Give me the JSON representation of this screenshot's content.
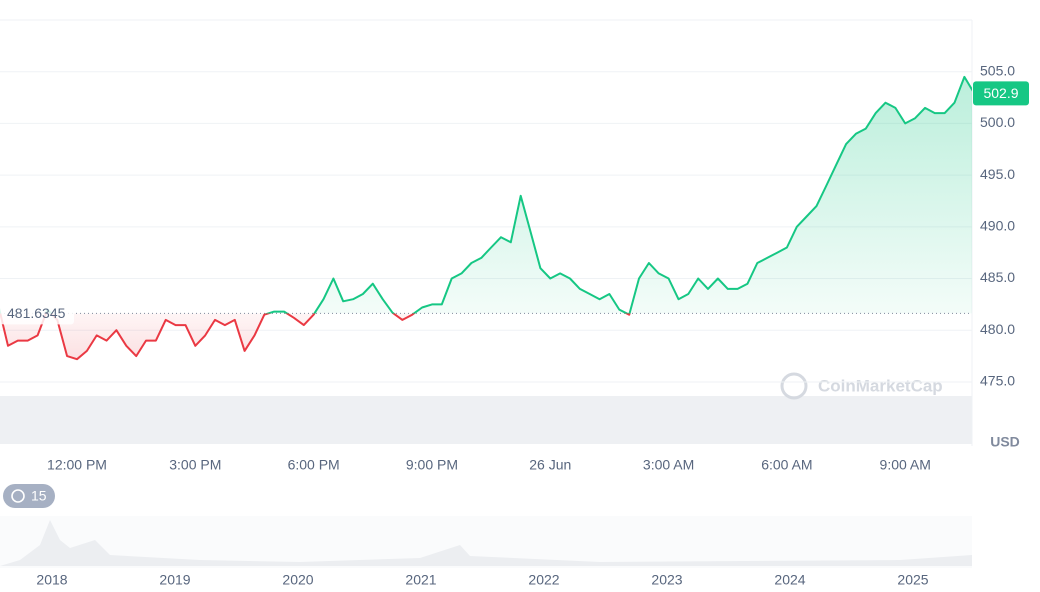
{
  "chart_data": {
    "type": "line",
    "categories": [
      null,
      null,
      null,
      null,
      null,
      null,
      null,
      null,
      "12:00 PM",
      null,
      null,
      null,
      null,
      null,
      null,
      null,
      null,
      null,
      null,
      null,
      "3:00 PM",
      null,
      null,
      null,
      null,
      null,
      null,
      null,
      null,
      null,
      null,
      null,
      "6:00 PM",
      null,
      null,
      null,
      null,
      null,
      null,
      null,
      null,
      null,
      null,
      null,
      "9:00 PM",
      null,
      null,
      null,
      null,
      null,
      null,
      null,
      null,
      null,
      null,
      null,
      "26 Jun",
      null,
      null,
      null,
      null,
      null,
      null,
      null,
      null,
      null,
      null,
      null,
      "3:00 AM",
      null,
      null,
      null,
      null,
      null,
      null,
      null,
      null,
      null,
      null,
      null,
      "6:00 AM",
      null,
      null,
      null,
      null,
      null,
      null,
      null,
      null,
      null,
      null,
      null,
      "9:00 AM",
      null,
      null,
      null,
      null,
      null,
      null,
      null
    ],
    "values": [
      482.5,
      478.5,
      479,
      479,
      479.5,
      482,
      481,
      477.5,
      477.2,
      478,
      479.5,
      479,
      480,
      478.5,
      477.5,
      479,
      479,
      481,
      480.5,
      480.5,
      478.5,
      479.5,
      481,
      480.5,
      481,
      478,
      479.5,
      481.5,
      481.8,
      481.8,
      481.2,
      480.5,
      481.5,
      483,
      485,
      482.8,
      483,
      483.5,
      484.5,
      483,
      481.7,
      481,
      481.5,
      482.2,
      482.5,
      482.5,
      485,
      485.5,
      486.5,
      487,
      488,
      489,
      488.5,
      493,
      489.5,
      486,
      485,
      485.5,
      485,
      484,
      483.5,
      483,
      483.5,
      482,
      481.5,
      485,
      486.5,
      485.5,
      485,
      483,
      483.5,
      485,
      484,
      485,
      484,
      484,
      484.5,
      486.5,
      487,
      487.5,
      488,
      490,
      491,
      492,
      494,
      496,
      498,
      499,
      499.5,
      501,
      502,
      501.5,
      500,
      500.5,
      501.5,
      501,
      501,
      502,
      504.5,
      502.9
    ],
    "up_color": "#16c784",
    "down_color": "#ea3943",
    "reference_value": 481.6345,
    "current_price": 502.9,
    "ylim": [
      469,
      510
    ],
    "yticks": [
      {
        "value": 475,
        "label": "475.0"
      },
      {
        "value": 480,
        "label": "480.0"
      },
      {
        "value": 485,
        "label": "485.0"
      },
      {
        "value": 490,
        "label": "490.0"
      },
      {
        "value": 495,
        "label": "495.0"
      },
      {
        "value": 500,
        "label": "500.0"
      },
      {
        "value": 505,
        "label": "505.0"
      }
    ],
    "y_axis_label": "USD",
    "grid": true
  },
  "navigator": {
    "years": [
      "2018",
      "2019",
      "2020",
      "2021",
      "2022",
      "2023",
      "2024",
      "2025"
    ]
  },
  "badge": {
    "count": "15"
  },
  "watermark": "CoinMarketCap"
}
